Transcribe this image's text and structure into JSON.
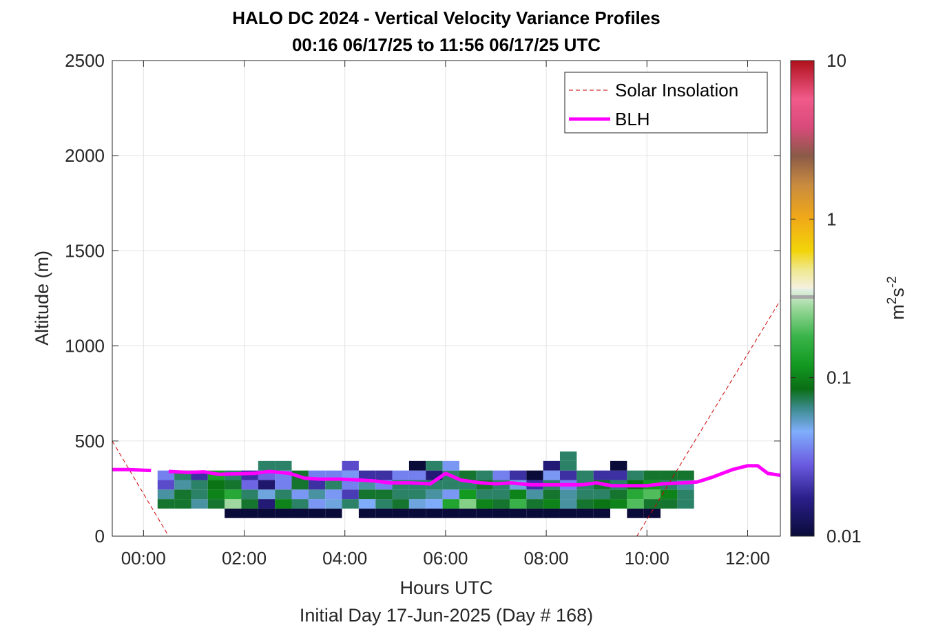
{
  "chart_data": {
    "type": "heatmap",
    "title": "HALO DC 2024 - Vertical Velocity Variance Profiles",
    "subtitle": "00:16 06/17/25 to 11:56 06/17/25  UTC",
    "xlabel": "Hours UTC",
    "xlabel2": "Initial Day 17-Jun-2025 (Day # 168)",
    "ylabel": "Altitude (m)",
    "colorbar_label_base": "m",
    "colorbar_label_exp1": "2",
    "colorbar_label_s": "s",
    "colorbar_label_exp2": "-2",
    "xlim": [
      -0.62,
      12.65
    ],
    "ylim": [
      0,
      2500
    ],
    "xticks": [
      "00:00",
      "02:00",
      "04:00",
      "06:00",
      "08:00",
      "10:00",
      "12:00"
    ],
    "xtick_values": [
      0,
      2,
      4,
      6,
      8,
      10,
      12
    ],
    "yticks": [
      "0",
      "500",
      "1000",
      "1500",
      "2000",
      "2500"
    ],
    "ytick_values": [
      0,
      500,
      1000,
      1500,
      2000,
      2500
    ],
    "colorbar": {
      "scale": "log",
      "range": [
        0.01,
        10
      ],
      "ticks": [
        "0.01",
        "0.1",
        "1",
        "10"
      ],
      "tick_values": [
        0.01,
        0.1,
        1,
        10
      ]
    },
    "grid": true,
    "legend": {
      "position": "top-right",
      "entries": [
        "Solar Insolation",
        "BLH"
      ]
    },
    "heatmap": {
      "time_start": 0.28,
      "time_step": 0.333,
      "altitude_levels": [
        120,
        170,
        220,
        270,
        320,
        370,
        420
      ],
      "columns": [
        [
          null,
          0.08,
          0.06,
          0.025,
          0.035,
          null,
          null
        ],
        [
          null,
          0.08,
          0.08,
          0.06,
          0.07,
          null,
          null
        ],
        [
          null,
          0.06,
          0.07,
          0.07,
          0.02,
          null,
          null
        ],
        [
          null,
          0.08,
          0.1,
          0.09,
          0.13,
          null,
          null
        ],
        [
          0.01,
          0.28,
          0.15,
          0.08,
          0.07,
          null,
          null
        ],
        [
          0.01,
          0.08,
          0.07,
          0.03,
          0.02,
          null,
          null
        ],
        [
          0.01,
          0.015,
          0.05,
          0.014,
          0.03,
          0.07,
          null
        ],
        [
          0.01,
          0.1,
          0.07,
          0.035,
          0.035,
          0.07,
          null
        ],
        [
          0.01,
          0.07,
          0.04,
          0.08,
          0.08,
          null,
          null
        ],
        [
          0.01,
          0.04,
          0.06,
          0.02,
          0.035,
          null,
          null
        ],
        [
          0.01,
          0.05,
          0.04,
          0.07,
          0.035,
          null,
          null
        ],
        [
          null,
          0.07,
          0.022,
          0.035,
          0.04,
          0.025,
          null
        ],
        [
          0.01,
          0.045,
          0.08,
          0.06,
          0.02,
          null,
          null
        ],
        [
          0.01,
          0.07,
          0.08,
          0.035,
          0.02,
          null,
          null
        ],
        [
          0.01,
          0.08,
          0.07,
          0.07,
          0.035,
          null,
          null
        ],
        [
          0.01,
          0.05,
          0.07,
          0.07,
          0.035,
          0.01,
          null
        ],
        [
          0.01,
          0.045,
          0.06,
          0.07,
          0.015,
          0.07,
          null
        ],
        [
          0.01,
          0.14,
          0.04,
          0.07,
          0.07,
          0.04,
          null
        ],
        [
          0.01,
          0.25,
          0.12,
          0.07,
          0.08,
          null,
          null
        ],
        [
          0.01,
          0.1,
          0.07,
          0.08,
          0.07,
          null,
          null
        ],
        [
          0.01,
          0.08,
          0.07,
          0.07,
          0.035,
          null,
          null
        ],
        [
          0.01,
          0.18,
          0.1,
          0.05,
          0.02,
          null,
          null
        ],
        [
          0.01,
          0.08,
          0.06,
          0.02,
          0.01,
          null,
          null
        ],
        [
          0.01,
          0.1,
          0.08,
          0.07,
          0.04,
          0.015,
          null
        ],
        [
          0.01,
          0.06,
          0.06,
          0.035,
          0.02,
          0.07,
          0.07
        ],
        [
          0.01,
          0.08,
          0.07,
          0.07,
          0.07,
          null,
          null
        ],
        [
          0.01,
          0.09,
          0.07,
          0.08,
          0.02,
          null,
          null
        ],
        [
          null,
          0.1,
          0.08,
          0.07,
          0.02,
          0.01,
          null
        ],
        [
          0.01,
          0.2,
          0.15,
          0.09,
          0.07,
          null,
          null
        ],
        [
          0.01,
          0.08,
          0.2,
          0.12,
          0.08,
          null,
          null
        ],
        [
          null,
          0.08,
          0.1,
          0.07,
          0.08,
          null,
          null
        ],
        [
          null,
          0.07,
          0.07,
          0.06,
          0.08,
          null,
          null
        ],
        [
          null,
          null,
          null,
          null,
          null,
          null,
          null
        ],
        [
          null,
          null,
          null,
          null,
          null,
          null,
          null
        ]
      ]
    },
    "series": [
      {
        "name": "Solar Insolation",
        "x": [
          -0.62,
          0.5,
          9.8,
          12.65
        ],
        "y": [
          500,
          0,
          0,
          1240
        ]
      },
      {
        "name": "BLH",
        "x": [
          -0.62,
          -0.3,
          0.15,
          0.5,
          0.9,
          1.2,
          1.5,
          1.9,
          2.2,
          2.5,
          2.9,
          3.2,
          3.5,
          3.9,
          4.3,
          4.6,
          4.9,
          5.3,
          5.7,
          6.0,
          6.3,
          6.7,
          7.0,
          7.3,
          7.7,
          8.0,
          8.3,
          8.7,
          9.0,
          9.3,
          9.7,
          10.0,
          10.3,
          10.7,
          11.0,
          11.3,
          11.7,
          12.0,
          12.2,
          12.4,
          12.65
        ],
        "y": [
          350,
          350,
          345,
          340,
          335,
          338,
          325,
          328,
          330,
          340,
          330,
          305,
          300,
          300,
          295,
          290,
          280,
          280,
          275,
          330,
          295,
          280,
          275,
          280,
          270,
          270,
          270,
          270,
          280,
          265,
          265,
          265,
          275,
          280,
          285,
          310,
          350,
          370,
          370,
          330,
          320
        ],
        "segments": [
          [
            0,
            2
          ],
          [
            3,
            40
          ]
        ]
      }
    ]
  }
}
